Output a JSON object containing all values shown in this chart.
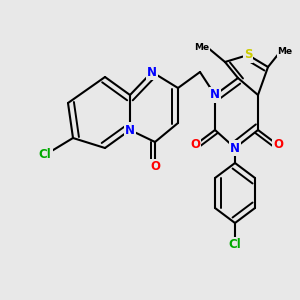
{
  "bg_color": "#e8e8e8",
  "bond_color": "#000000",
  "atom_colors": {
    "N": "#0000ff",
    "O": "#ff0000",
    "S": "#cccc00",
    "Cl": "#00aa00"
  }
}
